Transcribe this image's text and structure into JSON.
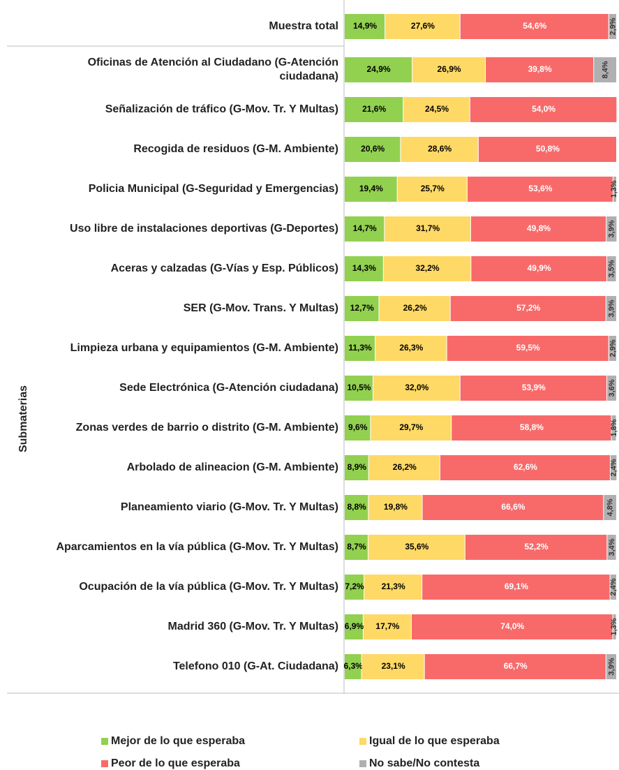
{
  "chart_data": {
    "type": "stacked_bar_horizontal",
    "y_label": "Submaterias",
    "categories": [
      "Muestra total",
      "Oficinas de Atención al Ciudadano (G-Atención ciudadana)",
      "Señalización de tráfico (G-Mov. Tr. Y Multas)",
      "Recogida de residuos (G-M. Ambiente)",
      "Policia Municipal (G-Seguridad y Emergencias)",
      "Uso libre de instalaciones deportivas (G-Deportes)",
      "Aceras y calzadas (G-Vías y Esp. Públicos)",
      "SER (G-Mov. Trans. Y Multas)",
      "Limpieza urbana y equipamientos (G-M. Ambiente)",
      "Sede Electrónica (G-Atención ciudadana)",
      "Zonas verdes de barrio o distrito (G-M. Ambiente)",
      "Arbolado de alineacion (G-M. Ambiente)",
      "Planeamiento viario (G-Mov. Tr. Y Multas)",
      "Aparcamientos en la vía pública (G-Mov. Tr. Y Multas)",
      "Ocupación de la vía pública (G-Mov. Tr. Y Multas)",
      "Madrid 360 (G-Mov. Tr. Y Multas)",
      "Telefono 010 (G-At. Ciudadana)"
    ],
    "xlim": [
      0,
      100
    ],
    "series": [
      {
        "name": "Mejor de lo que esperaba",
        "color": "#92d050",
        "values": [
          14.9,
          24.9,
          21.6,
          20.6,
          19.4,
          14.7,
          14.3,
          12.7,
          11.3,
          10.5,
          9.6,
          8.9,
          8.8,
          8.7,
          7.2,
          6.9,
          6.3
        ],
        "value_labels": [
          "14,9%",
          "24,9%",
          "21,6%",
          "20,6%",
          "19,4%",
          "14,7%",
          "14,3%",
          "12,7%",
          "11,3%",
          "10,5%",
          "9,6%",
          "8,9%",
          "8,8%",
          "8,7%",
          "7,2%",
          "6,9%",
          "6,3%"
        ]
      },
      {
        "name": "Igual de lo que esperaba",
        "color": "#ffd966",
        "values": [
          27.6,
          26.9,
          24.5,
          28.6,
          25.7,
          31.7,
          32.2,
          26.2,
          26.3,
          32.0,
          29.7,
          26.2,
          19.8,
          35.6,
          21.3,
          17.7,
          23.1
        ],
        "value_labels": [
          "27,6%",
          "26,9%",
          "24,5%",
          "28,6%",
          "25,7%",
          "31,7%",
          "32,2%",
          "26,2%",
          "26,3%",
          "32,0%",
          "29,7%",
          "26,2%",
          "19,8%",
          "35,6%",
          "21,3%",
          "17,7%",
          "23,1%"
        ]
      },
      {
        "name": "Peor de lo que esperaba",
        "color": "#f86a6a",
        "values": [
          54.6,
          39.8,
          54.0,
          50.8,
          53.6,
          49.8,
          49.9,
          57.2,
          59.5,
          53.9,
          58.8,
          62.6,
          66.6,
          52.2,
          69.1,
          74.0,
          66.7
        ],
        "value_labels": [
          "54,6%",
          "39,8%",
          "54,0%",
          "50,8%",
          "53,6%",
          "49,8%",
          "49,9%",
          "57,2%",
          "59,5%",
          "53,9%",
          "58,8%",
          "62,6%",
          "66,6%",
          "52,2%",
          "69,1%",
          "74,0%",
          "66,7%"
        ]
      },
      {
        "name": "No sabe/No contesta",
        "color": "#b0b0b0",
        "values": [
          2.9,
          8.4,
          null,
          null,
          1.3,
          3.9,
          3.5,
          3.9,
          2.9,
          3.6,
          1.8,
          2.4,
          4.8,
          3.4,
          2.4,
          1.3,
          3.9
        ],
        "value_labels": [
          "2,9%",
          "8,4%",
          null,
          null,
          "1,3%",
          "3,9%",
          "3,5%",
          "3,9%",
          "2,9%",
          "3,6%",
          "1,8%",
          "2,4%",
          "4,8%",
          "3,4%",
          "2,4%",
          "1,3%",
          "3,9%"
        ]
      }
    ]
  }
}
